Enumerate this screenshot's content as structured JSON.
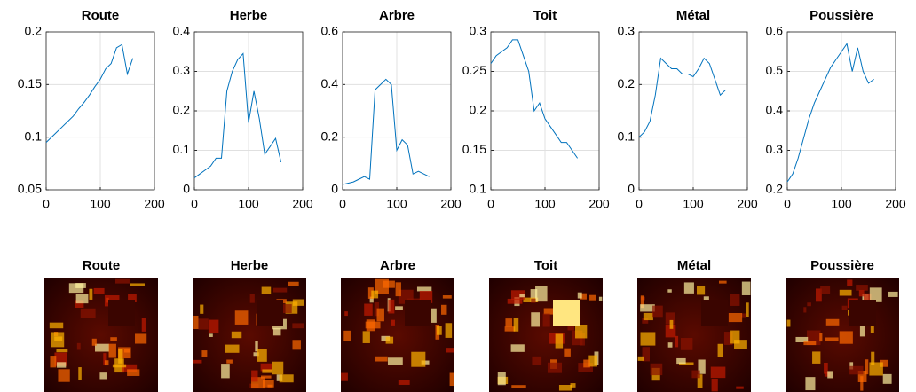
{
  "chart_data": [
    {
      "type": "line",
      "title": "Route",
      "x": [
        0,
        10,
        20,
        30,
        40,
        50,
        60,
        70,
        80,
        90,
        100,
        110,
        120,
        130,
        140,
        150,
        160
      ],
      "values": [
        0.095,
        0.1,
        0.105,
        0.11,
        0.115,
        0.12,
        0.127,
        0.133,
        0.14,
        0.148,
        0.155,
        0.165,
        0.17,
        0.185,
        0.188,
        0.16,
        0.175
      ],
      "color": "#0072bd",
      "xlim": [
        0,
        200
      ],
      "xticks": [
        0,
        100,
        200
      ],
      "ylim": [
        0.05,
        0.2
      ],
      "yticks": [
        0.05,
        0.1,
        0.15,
        0.2
      ],
      "grid": true
    },
    {
      "type": "line",
      "title": "Herbe",
      "x": [
        0,
        10,
        20,
        30,
        40,
        50,
        60,
        70,
        80,
        90,
        100,
        110,
        120,
        130,
        140,
        150,
        160
      ],
      "values": [
        0.03,
        0.04,
        0.05,
        0.06,
        0.08,
        0.08,
        0.25,
        0.3,
        0.33,
        0.345,
        0.17,
        0.25,
        0.18,
        0.09,
        0.11,
        0.13,
        0.07
      ],
      "color": "#0072bd",
      "xlim": [
        0,
        200
      ],
      "xticks": [
        0,
        100,
        200
      ],
      "ylim": [
        0,
        0.4
      ],
      "yticks": [
        0,
        0.1,
        0.2,
        0.3,
        0.4
      ],
      "grid": true
    },
    {
      "type": "line",
      "title": "Arbre",
      "x": [
        0,
        10,
        20,
        30,
        40,
        50,
        60,
        70,
        80,
        90,
        100,
        110,
        120,
        130,
        140,
        150,
        160
      ],
      "values": [
        0.02,
        0.025,
        0.03,
        0.04,
        0.05,
        0.04,
        0.38,
        0.4,
        0.42,
        0.4,
        0.15,
        0.19,
        0.17,
        0.06,
        0.07,
        0.06,
        0.05
      ],
      "color": "#0072bd",
      "xlim": [
        0,
        200
      ],
      "xticks": [
        0,
        100,
        200
      ],
      "ylim": [
        0,
        0.6
      ],
      "yticks": [
        0,
        0.2,
        0.4,
        0.6
      ],
      "grid": true
    },
    {
      "type": "line",
      "title": "Toit",
      "x": [
        0,
        10,
        20,
        30,
        40,
        50,
        60,
        70,
        80,
        90,
        100,
        110,
        120,
        130,
        140,
        150,
        160
      ],
      "values": [
        0.26,
        0.27,
        0.275,
        0.28,
        0.29,
        0.29,
        0.27,
        0.25,
        0.2,
        0.21,
        0.19,
        0.18,
        0.17,
        0.16,
        0.16,
        0.15,
        0.14
      ],
      "color": "#0072bd",
      "xlim": [
        0,
        200
      ],
      "xticks": [
        0,
        100,
        200
      ],
      "ylim": [
        0.1,
        0.3
      ],
      "yticks": [
        0.1,
        0.15,
        0.2,
        0.25,
        0.3
      ],
      "grid": true
    },
    {
      "type": "line",
      "title": "Métal",
      "x": [
        0,
        10,
        20,
        30,
        40,
        50,
        60,
        70,
        80,
        90,
        100,
        110,
        120,
        130,
        140,
        150,
        160
      ],
      "values": [
        0.1,
        0.11,
        0.13,
        0.18,
        0.25,
        0.24,
        0.23,
        0.23,
        0.22,
        0.22,
        0.215,
        0.23,
        0.25,
        0.24,
        0.21,
        0.18,
        0.19
      ],
      "color": "#0072bd",
      "xlim": [
        0,
        200
      ],
      "xticks": [
        0,
        100,
        200
      ],
      "ylim": [
        0,
        0.3
      ],
      "yticks": [
        0,
        0.1,
        0.2,
        0.3
      ],
      "grid": true
    },
    {
      "type": "line",
      "title": "Poussière",
      "x": [
        0,
        10,
        20,
        30,
        40,
        50,
        60,
        70,
        80,
        90,
        100,
        110,
        120,
        130,
        140,
        150,
        160
      ],
      "values": [
        0.22,
        0.24,
        0.28,
        0.33,
        0.38,
        0.42,
        0.45,
        0.48,
        0.51,
        0.53,
        0.55,
        0.57,
        0.5,
        0.56,
        0.5,
        0.47,
        0.48
      ],
      "color": "#0072bd",
      "xlim": [
        0,
        200
      ],
      "xticks": [
        0,
        100,
        200
      ],
      "ylim": [
        0.2,
        0.6
      ],
      "yticks": [
        0.2,
        0.3,
        0.4,
        0.5,
        0.6
      ],
      "grid": true
    }
  ],
  "abundance_maps": {
    "titles": [
      "Route",
      "Herbe",
      "Arbre",
      "Toit",
      "Métal",
      "Poussière"
    ]
  }
}
